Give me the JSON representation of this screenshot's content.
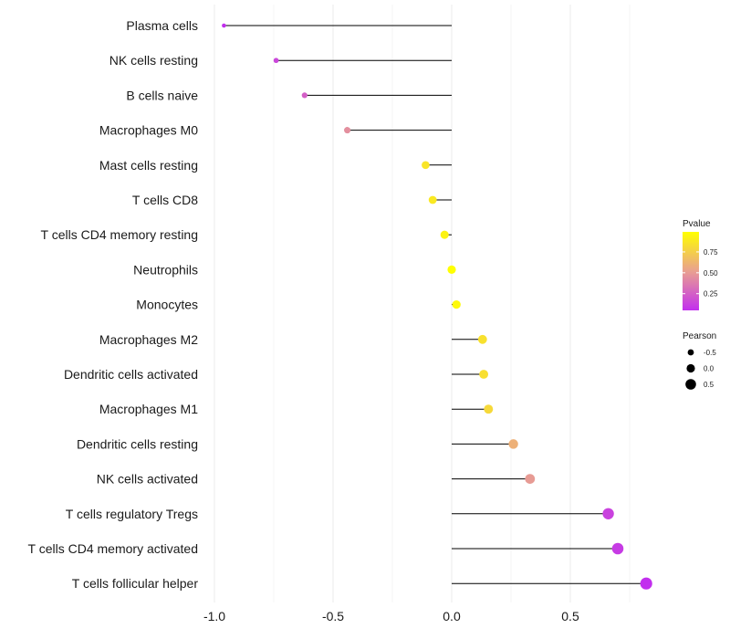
{
  "chart_data": {
    "type": "lollipop",
    "x_range": [
      -1.0,
      0.85
    ],
    "x_ticks": [
      {
        "value": -1.0,
        "label": "-1.0"
      },
      {
        "value": -0.5,
        "label": "-0.5"
      },
      {
        "value": 0.0,
        "label": "0.0"
      },
      {
        "value": 0.5,
        "label": "0.5"
      }
    ],
    "categories": [
      {
        "label": "Plasma cells",
        "pearson": -0.96,
        "pvalue": 0.05
      },
      {
        "label": "NK cells resting",
        "pearson": -0.74,
        "pvalue": 0.15
      },
      {
        "label": "B cells naive",
        "pearson": -0.62,
        "pvalue": 0.25
      },
      {
        "label": "Macrophages M0",
        "pearson": -0.44,
        "pvalue": 0.45
      },
      {
        "label": "Mast cells resting",
        "pearson": -0.11,
        "pvalue": 0.86
      },
      {
        "label": "T cells CD8",
        "pearson": -0.08,
        "pvalue": 0.88
      },
      {
        "label": "T cells CD4 memory resting",
        "pearson": -0.03,
        "pvalue": 0.93
      },
      {
        "label": "Neutrophils",
        "pearson": 0.0,
        "pvalue": 0.99
      },
      {
        "label": "Monocytes",
        "pearson": 0.02,
        "pvalue": 0.96
      },
      {
        "label": "Macrophages M2",
        "pearson": 0.13,
        "pvalue": 0.84
      },
      {
        "label": "Dendritic cells activated",
        "pearson": 0.135,
        "pvalue": 0.83
      },
      {
        "label": "Macrophages M1",
        "pearson": 0.155,
        "pvalue": 0.8
      },
      {
        "label": "Dendritic cells resting",
        "pearson": 0.26,
        "pvalue": 0.6
      },
      {
        "label": "NK cells activated",
        "pearson": 0.33,
        "pvalue": 0.5
      },
      {
        "label": "T cells regulatory  Tregs",
        "pearson": 0.66,
        "pvalue": 0.13
      },
      {
        "label": "T cells CD4 memory activated",
        "pearson": 0.7,
        "pvalue": 0.1
      },
      {
        "label": "T cells follicular helper",
        "pearson": 0.82,
        "pvalue": 0.05
      }
    ],
    "color_legend": {
      "title": "Pvalue",
      "range": [
        0.05,
        0.99
      ],
      "low_color": "#c22fee",
      "mid_color": "#e9a090",
      "high_color": "#ffff00",
      "ticks": [
        {
          "value": 0.75,
          "label": "0.75"
        },
        {
          "value": 0.5,
          "label": "0.50"
        },
        {
          "value": 0.25,
          "label": "0.25"
        }
      ]
    },
    "size_legend": {
      "title": "Pearson",
      "items": [
        {
          "value": -0.5,
          "label": "-0.5"
        },
        {
          "value": 0.0,
          "label": "0.0"
        },
        {
          "value": 0.5,
          "label": "0.5"
        }
      ]
    }
  }
}
